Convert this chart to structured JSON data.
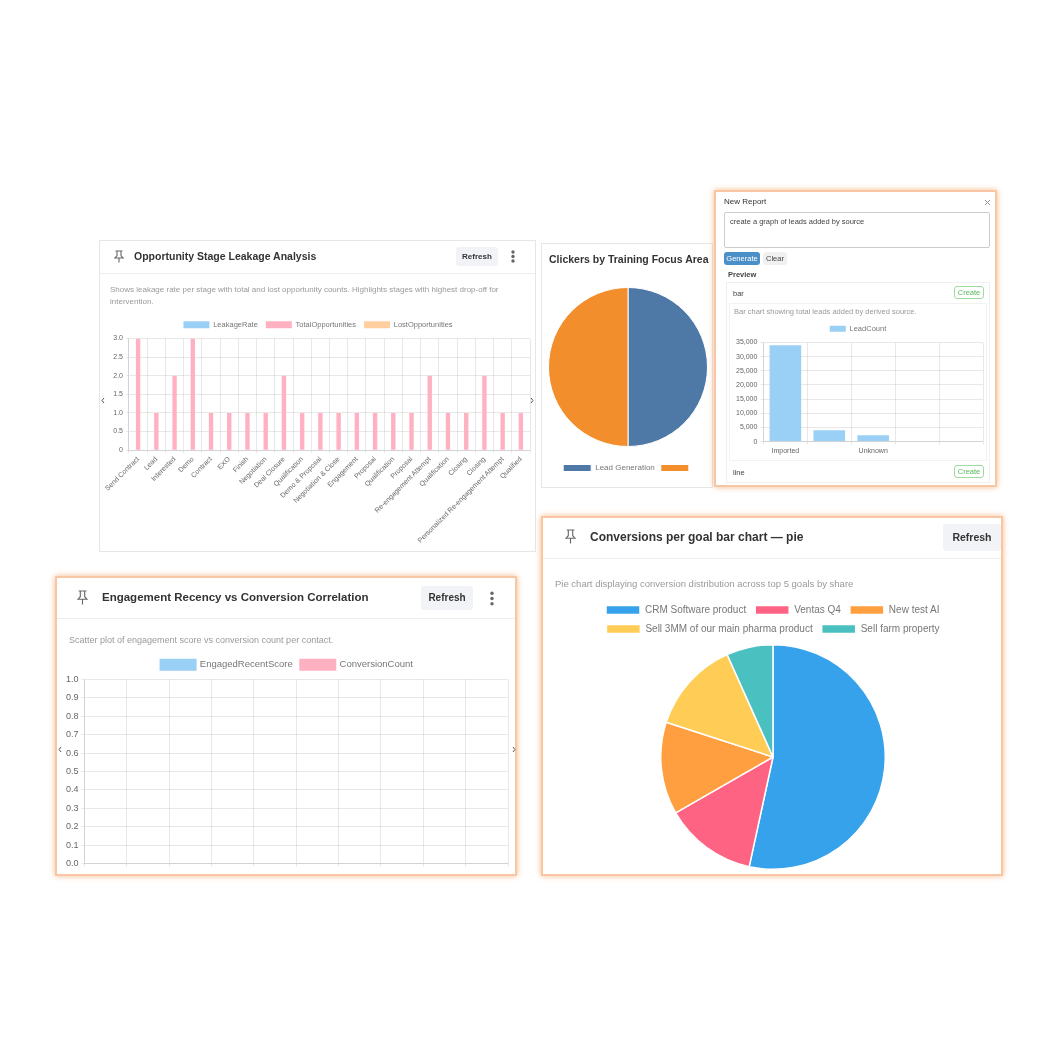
{
  "chart_data": [
    {
      "type": "bar",
      "title": "Opportunity Stage Leakage Analysis",
      "subtitle": "Shows leakage rate per stage with total and lost opportunity counts. Highlights stages with highest drop-off for intervention.",
      "annotations": [
        "Refresh"
      ],
      "categories": [
        "Send Contract",
        "Lead",
        "Interested",
        "Demo",
        "Contract",
        "EXO",
        "Finish",
        "Negotiation",
        "Deal Closure",
        "Qualification",
        "Demo & Proposal",
        "Negotiation & Close",
        "Engagement",
        "Proposal",
        "Qualification",
        "Proposal",
        "Re-engagement Attempt",
        "Qualification",
        "Closing",
        "Closing",
        "Personalized Re-engagement Attempt",
        "Qualified"
      ],
      "series": [
        {
          "name": "LeakageRate",
          "color": "#9ad0f5",
          "values": [
            null,
            null,
            null,
            null,
            null,
            null,
            null,
            null,
            null,
            null,
            null,
            null,
            null,
            null,
            null,
            null,
            null,
            null,
            null,
            null,
            null,
            null
          ]
        },
        {
          "name": "TotalOpportunities",
          "color": "#ffb1c1",
          "values": [
            3,
            1,
            2,
            3,
            1,
            1,
            1,
            1,
            2,
            1,
            1,
            1,
            1,
            1,
            1,
            1,
            2,
            1,
            1,
            2,
            1,
            1
          ]
        },
        {
          "name": "LostOpportunities",
          "color": "#ffcf9f",
          "values": [
            null,
            null,
            null,
            null,
            null,
            null,
            null,
            null,
            null,
            null,
            null,
            null,
            null,
            null,
            null,
            null,
            null,
            null,
            null,
            null,
            null,
            null
          ]
        }
      ],
      "ylim": [
        0,
        3
      ],
      "yticks": [
        0,
        0.5,
        {
          "value": 1,
          "label": "1.0"
        },
        1.5,
        {
          "value": 2,
          "label": "2.0"
        },
        2.5,
        {
          "value": 3,
          "label": "3.0"
        }
      ],
      "grid": true,
      "legend": "top"
    },
    {
      "type": "pie",
      "title": "Clickers by Training Focus Area",
      "categories": [
        "Lead Generation",
        null
      ],
      "values": [
        50,
        50
      ],
      "colors": [
        "#4e79a7",
        "#f28e2b"
      ],
      "legend": "bottom"
    },
    {
      "type": "bar",
      "title": "New Report",
      "subtitle": "Bar chart showing total leads added by derived source.",
      "annotations": [
        "create a graph of leads added by source",
        "Generate",
        "Clear",
        "Preview",
        "bar",
        "Create",
        "line",
        "Create"
      ],
      "categories": [
        "Imported",
        null,
        "Unknown",
        null,
        null
      ],
      "series": [
        {
          "name": "LeadCount",
          "color": "#9ad0f5",
          "values": [
            34000,
            4000,
            2200,
            0,
            0
          ]
        }
      ],
      "ylim": [
        0,
        35000
      ],
      "yticks": [
        0,
        {
          "value": 5000,
          "label": "5,000"
        },
        {
          "value": 10000,
          "label": "10,000"
        },
        {
          "value": 15000,
          "label": "15,000"
        },
        {
          "value": 20000,
          "label": "20,000"
        },
        {
          "value": 25000,
          "label": "25,000"
        },
        {
          "value": 30000,
          "label": "30,000"
        },
        {
          "value": 35000,
          "label": "35,000"
        }
      ],
      "grid": true,
      "legend": "top"
    },
    {
      "type": "scatter",
      "title": "Engagement Recency vs Conversion Correlation",
      "subtitle": "Scatter plot of engagement score vs conversion count per contact.",
      "annotations": [
        "Refresh"
      ],
      "categories": [
        null,
        null,
        null,
        null,
        null,
        null,
        null,
        null,
        null,
        null
      ],
      "series": [
        {
          "name": "EngagedRecentScore",
          "color": "#9ad0f5",
          "values": [
            null,
            null,
            null,
            null,
            null,
            null,
            null,
            null,
            null,
            null
          ]
        },
        {
          "name": "ConversionCount",
          "color": "#ffb1c1",
          "values": [
            null,
            null,
            null,
            null,
            null,
            null,
            null,
            null,
            null,
            null
          ]
        }
      ],
      "ylim": [
        0,
        1
      ],
      "yticks": [
        {
          "value": 0,
          "label": "0.0"
        },
        0.1,
        0.2,
        0.3,
        0.4,
        0.5,
        0.6,
        0.7,
        0.8,
        0.9,
        {
          "value": 1,
          "label": "1.0"
        }
      ],
      "grid": true,
      "legend": "top",
      "tick_labels": "y"
    },
    {
      "type": "pie",
      "title": "Conversions per goal bar chart — pie",
      "subtitle": "Pie chart displaying conversion distribution across top 5 goals by share",
      "annotations": [
        "Refresh"
      ],
      "categories": [
        "CRM Software product",
        "Ventas Q4",
        "New test AI",
        "Sell 3MM of our main pharma product",
        "Sell farm property"
      ],
      "values": [
        53.4,
        13.3,
        13.3,
        13.3,
        6.7
      ],
      "colors": [
        "#36a2eb",
        "#ff6384",
        "#ff9f40",
        "#ffcd56",
        "#4bc0c0"
      ],
      "legend": "top"
    }
  ]
}
